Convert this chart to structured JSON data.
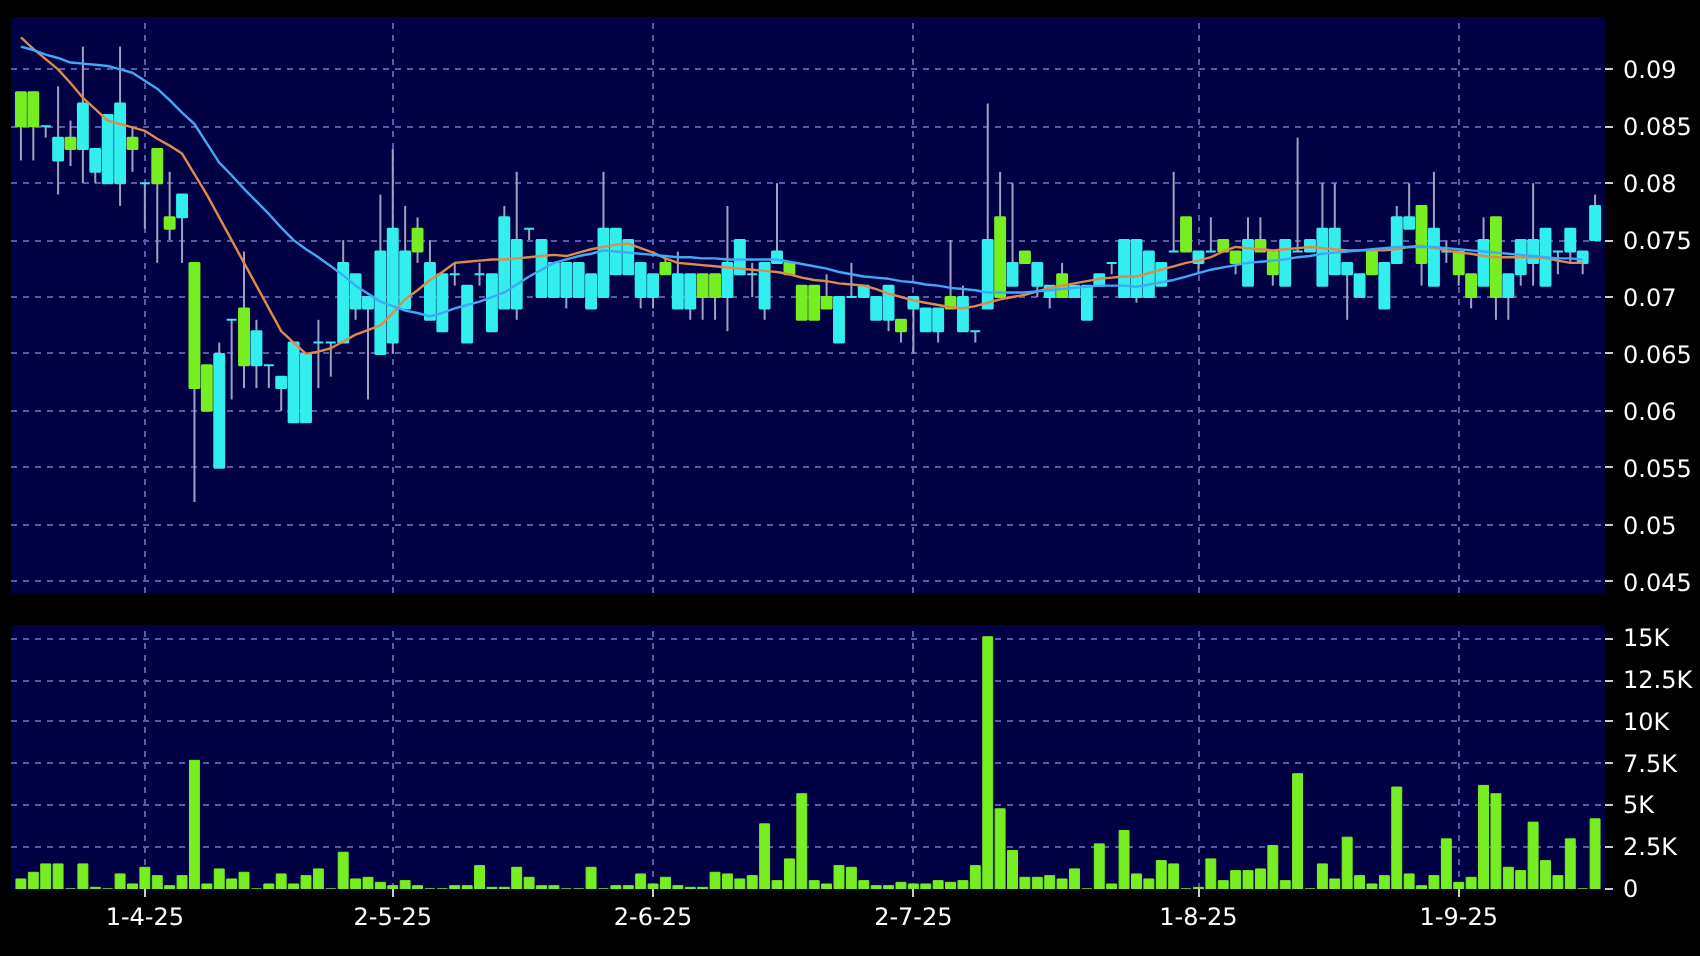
{
  "chart_data": [
    {
      "type": "candlestick",
      "categories": [
        null,
        null,
        null,
        null,
        null,
        null,
        null,
        null,
        null,
        null,
        null,
        null,
        null,
        null,
        null,
        null,
        null,
        null,
        null,
        null,
        null,
        null,
        null,
        null,
        null,
        null,
        null,
        null,
        null,
        null,
        null,
        null,
        null,
        null,
        null,
        null,
        null,
        null,
        null,
        null,
        null,
        null,
        null,
        null,
        null,
        null,
        null,
        null,
        null,
        null,
        null,
        null,
        null,
        null,
        null,
        null,
        null,
        null,
        null,
        null,
        null,
        null,
        null,
        null,
        null,
        null,
        null,
        null,
        null,
        null,
        null,
        null,
        null,
        null,
        null,
        null,
        null,
        null,
        null,
        null,
        null,
        null,
        null,
        null,
        null,
        null,
        null,
        null,
        null,
        null,
        null,
        null,
        null,
        null,
        null,
        null,
        null,
        null,
        null,
        null,
        null,
        null,
        null,
        null,
        null,
        null,
        null,
        null,
        null,
        null,
        null,
        null,
        null,
        null,
        null,
        null,
        null,
        null,
        null,
        null,
        null,
        null,
        null,
        null,
        null,
        null,
        null,
        null
      ],
      "ohlc": [
        [
          0.088,
          0.088,
          0.082,
          0.085
        ],
        [
          0.088,
          0.088,
          0.082,
          0.085
        ],
        [
          0.085,
          0.085,
          0.084,
          0.085
        ],
        [
          0.082,
          0.0885,
          0.079,
          0.084
        ],
        [
          0.084,
          0.0855,
          0.0815,
          0.083
        ],
        [
          0.083,
          0.092,
          0.08,
          0.087
        ],
        [
          0.081,
          0.083,
          0.08,
          0.083
        ],
        [
          0.08,
          0.086,
          0.08,
          0.086
        ],
        [
          0.08,
          0.092,
          0.078,
          0.087
        ],
        [
          0.084,
          0.085,
          0.081,
          0.083
        ],
        [
          0.08,
          0.08,
          0.076,
          0.08
        ],
        [
          0.083,
          0.083,
          0.073,
          0.08
        ],
        [
          0.077,
          0.081,
          0.075,
          0.076
        ],
        [
          0.077,
          0.079,
          0.073,
          0.079
        ],
        [
          0.073,
          0.073,
          0.052,
          0.062
        ],
        [
          0.064,
          0.064,
          0.06,
          0.06
        ],
        [
          0.055,
          0.066,
          0.055,
          0.065
        ],
        [
          0.068,
          0.068,
          0.061,
          0.068
        ],
        [
          0.069,
          0.074,
          0.062,
          0.064
        ],
        [
          0.064,
          0.068,
          0.062,
          0.067
        ],
        [
          0.064,
          0.064,
          0.062,
          0.064
        ],
        [
          0.062,
          0.063,
          0.06,
          0.063
        ],
        [
          0.059,
          0.066,
          0.059,
          0.066
        ],
        [
          0.059,
          0.065,
          0.059,
          0.065
        ],
        [
          0.066,
          0.068,
          0.062,
          0.066
        ],
        [
          0.066,
          0.066,
          0.063,
          0.066
        ],
        [
          0.066,
          0.075,
          0.066,
          0.073
        ],
        [
          0.069,
          0.072,
          0.068,
          0.072
        ],
        [
          0.069,
          0.07,
          0.061,
          0.07
        ],
        [
          0.065,
          0.079,
          0.065,
          0.074
        ],
        [
          0.066,
          0.083,
          0.065,
          0.076
        ],
        [
          0.069,
          0.078,
          0.069,
          0.074
        ],
        [
          0.076,
          0.077,
          0.073,
          0.074
        ],
        [
          0.068,
          0.075,
          0.068,
          0.073
        ],
        [
          0.067,
          0.072,
          0.067,
          0.072
        ],
        [
          0.072,
          0.073,
          0.071,
          0.072
        ],
        [
          0.066,
          0.071,
          0.066,
          0.071
        ],
        [
          0.072,
          0.073,
          0.071,
          0.072
        ],
        [
          0.067,
          0.072,
          0.067,
          0.072
        ],
        [
          0.069,
          0.078,
          0.069,
          0.077
        ],
        [
          0.069,
          0.081,
          0.068,
          0.075
        ],
        [
          0.076,
          0.076,
          0.075,
          0.076
        ],
        [
          0.07,
          0.075,
          0.07,
          0.075
        ],
        [
          0.07,
          0.073,
          0.07,
          0.073
        ],
        [
          0.07,
          0.073,
          0.069,
          0.073
        ],
        [
          0.07,
          0.073,
          0.07,
          0.073
        ],
        [
          0.069,
          0.072,
          0.069,
          0.072
        ],
        [
          0.07,
          0.081,
          0.07,
          0.076
        ],
        [
          0.072,
          0.076,
          0.072,
          0.076
        ],
        [
          0.072,
          0.075,
          0.072,
          0.075
        ],
        [
          0.07,
          0.073,
          0.069,
          0.073
        ],
        [
          0.07,
          0.072,
          0.069,
          0.072
        ],
        [
          0.073,
          0.0735,
          0.072,
          0.072
        ],
        [
          0.069,
          0.074,
          0.069,
          0.072
        ],
        [
          0.069,
          0.072,
          0.068,
          0.072
        ],
        [
          0.072,
          0.072,
          0.068,
          0.07
        ],
        [
          0.072,
          0.072,
          0.068,
          0.07
        ],
        [
          0.07,
          0.078,
          0.067,
          0.073
        ],
        [
          0.072,
          0.075,
          0.072,
          0.075
        ],
        [
          0.072,
          0.073,
          0.07,
          0.072
        ],
        [
          0.069,
          0.073,
          0.068,
          0.073
        ],
        [
          0.073,
          0.08,
          0.073,
          0.074
        ],
        [
          0.073,
          0.073,
          0.072,
          0.072
        ],
        [
          0.071,
          0.071,
          0.068,
          0.068
        ],
        [
          0.071,
          0.071,
          0.068,
          0.068
        ],
        [
          0.07,
          0.072,
          0.069,
          0.069
        ],
        [
          0.066,
          0.07,
          0.066,
          0.07
        ],
        [
          0.07,
          0.073,
          0.07,
          0.07
        ],
        [
          0.07,
          0.071,
          0.07,
          0.071
        ],
        [
          0.068,
          0.07,
          0.068,
          0.07
        ],
        [
          0.068,
          0.071,
          0.067,
          0.071
        ],
        [
          0.068,
          0.068,
          0.066,
          0.067
        ],
        [
          0.069,
          0.07,
          0.065,
          0.07
        ],
        [
          0.067,
          0.069,
          0.067,
          0.069
        ],
        [
          0.067,
          0.069,
          0.066,
          0.069
        ],
        [
          0.07,
          0.075,
          0.069,
          0.069
        ],
        [
          0.067,
          0.071,
          0.067,
          0.07
        ],
        [
          0.067,
          0.067,
          0.066,
          0.067
        ],
        [
          0.069,
          0.087,
          0.069,
          0.075
        ],
        [
          0.077,
          0.081,
          0.07,
          0.07
        ],
        [
          0.071,
          0.08,
          0.071,
          0.073
        ],
        [
          0.074,
          0.074,
          0.073,
          0.073
        ],
        [
          0.071,
          0.073,
          0.07,
          0.073
        ],
        [
          0.07,
          0.071,
          0.069,
          0.071
        ],
        [
          0.072,
          0.073,
          0.07,
          0.07
        ],
        [
          0.07,
          0.071,
          0.07,
          0.071
        ],
        [
          0.068,
          0.071,
          0.068,
          0.071
        ],
        [
          0.071,
          0.072,
          0.071,
          0.072
        ],
        [
          0.073,
          0.073,
          0.072,
          0.073
        ],
        [
          0.07,
          0.075,
          0.07,
          0.075
        ],
        [
          0.07,
          0.075,
          0.0695,
          0.075
        ],
        [
          0.07,
          0.074,
          0.07,
          0.074
        ],
        [
          0.071,
          0.073,
          0.071,
          0.073
        ],
        [
          0.074,
          0.081,
          0.074,
          0.074
        ],
        [
          0.077,
          0.077,
          0.074,
          0.074
        ],
        [
          0.073,
          0.074,
          0.072,
          0.074
        ],
        [
          0.074,
          0.077,
          0.074,
          0.074
        ],
        [
          0.075,
          0.075,
          0.074,
          0.074
        ],
        [
          0.074,
          0.074,
          0.072,
          0.073
        ],
        [
          0.071,
          0.077,
          0.071,
          0.075
        ],
        [
          0.075,
          0.077,
          0.074,
          0.074
        ],
        [
          0.074,
          0.074,
          0.071,
          0.072
        ],
        [
          0.071,
          0.075,
          0.071,
          0.075
        ],
        [
          0.074,
          0.084,
          0.074,
          0.074
        ],
        [
          0.074,
          0.075,
          0.074,
          0.075
        ],
        [
          0.071,
          0.08,
          0.071,
          0.076
        ],
        [
          0.072,
          0.08,
          0.072,
          0.076
        ],
        [
          0.072,
          0.073,
          0.068,
          0.073
        ],
        [
          0.07,
          0.072,
          0.07,
          0.072
        ],
        [
          0.074,
          0.074,
          0.072,
          0.072
        ],
        [
          0.069,
          0.073,
          0.069,
          0.073
        ],
        [
          0.073,
          0.078,
          0.073,
          0.077
        ],
        [
          0.076,
          0.08,
          0.076,
          0.077
        ],
        [
          0.078,
          0.078,
          0.071,
          0.073
        ],
        [
          0.071,
          0.081,
          0.071,
          0.076
        ],
        [
          0.074,
          0.075,
          0.073,
          0.074
        ],
        [
          0.074,
          0.074,
          0.071,
          0.072
        ],
        [
          0.072,
          0.072,
          0.069,
          0.07
        ],
        [
          0.071,
          0.077,
          0.071,
          0.075
        ],
        [
          0.077,
          0.077,
          0.068,
          0.07
        ],
        [
          0.07,
          0.072,
          0.068,
          0.072
        ],
        [
          0.072,
          0.075,
          0.071,
          0.075
        ],
        [
          0.073,
          0.08,
          0.071,
          0.075
        ],
        [
          0.071,
          0.076,
          0.071,
          0.076
        ],
        [
          0.074,
          0.074,
          0.072,
          0.074
        ],
        [
          0.074,
          0.076,
          0.073,
          0.076
        ],
        [
          0.073,
          0.074,
          0.072,
          0.074
        ],
        [
          0.075,
          0.079,
          0.075,
          0.078
        ]
      ],
      "colors": [
        "#77ee22",
        "#77ee22",
        "#33eeee",
        "#33eeee",
        "#77ee22",
        "#33eeee",
        "#33eeee",
        "#33eeee",
        "#33eeee",
        "#77ee22",
        "#33eeee",
        "#77ee22",
        "#77ee22",
        "#33eeee",
        "#77ee22",
        "#77ee22",
        "#33eeee",
        "#33eeee",
        "#77ee22",
        "#33eeee",
        "#33eeee",
        "#33eeee",
        "#33eeee",
        "#33eeee",
        "#33eeee",
        "#33eeee",
        "#33eeee",
        "#33eeee",
        "#33eeee",
        "#33eeee",
        "#33eeee",
        "#33eeee",
        "#77ee22",
        "#33eeee",
        "#33eeee",
        "#33eeee",
        "#33eeee",
        "#33eeee",
        "#33eeee",
        "#33eeee",
        "#33eeee",
        "#33eeee",
        "#33eeee",
        "#33eeee",
        "#33eeee",
        "#33eeee",
        "#33eeee",
        "#33eeee",
        "#33eeee",
        "#33eeee",
        "#33eeee",
        "#33eeee",
        "#77ee22",
        "#33eeee",
        "#33eeee",
        "#77ee22",
        "#77ee22",
        "#33eeee",
        "#33eeee",
        "#33eeee",
        "#33eeee",
        "#33eeee",
        "#77ee22",
        "#77ee22",
        "#77ee22",
        "#77ee22",
        "#33eeee",
        "#33eeee",
        "#33eeee",
        "#33eeee",
        "#33eeee",
        "#77ee22",
        "#33eeee",
        "#33eeee",
        "#33eeee",
        "#77ee22",
        "#33eeee",
        "#33eeee",
        "#33eeee",
        "#77ee22",
        "#33eeee",
        "#77ee22",
        "#33eeee",
        "#33eeee",
        "#77ee22",
        "#33eeee",
        "#33eeee",
        "#33eeee",
        "#33eeee",
        "#33eeee",
        "#33eeee",
        "#33eeee",
        "#33eeee",
        "#33eeee",
        "#77ee22",
        "#33eeee",
        "#33eeee",
        "#77ee22",
        "#77ee22",
        "#33eeee",
        "#77ee22",
        "#77ee22",
        "#33eeee",
        "#33eeee",
        "#33eeee",
        "#33eeee",
        "#33eeee",
        "#33eeee",
        "#33eeee",
        "#77ee22",
        "#33eeee",
        "#33eeee",
        "#33eeee",
        "#77ee22",
        "#33eeee",
        "#33eeee",
        "#77ee22",
        "#77ee22",
        "#33eeee",
        "#77ee22",
        "#33eeee",
        "#33eeee",
        "#33eeee",
        "#33eeee",
        "#33eeee",
        "#33eeee",
        "#33eeee",
        "#33eeee"
      ],
      "series": [
        {
          "type": "line",
          "color": "#e08a4a",
          "values": [
            0.0928,
            0.0918,
            0.0909,
            0.09,
            0.0888,
            0.0875,
            0.0865,
            0.0855,
            0.0852,
            0.0849,
            0.0846,
            0.0839,
            0.0833,
            0.0826,
            0.0808,
            0.079,
            0.077,
            0.075,
            0.073,
            0.071,
            0.069,
            0.067,
            0.066,
            0.065,
            0.0652,
            0.0655,
            0.0661,
            0.0667,
            0.0671,
            0.0675,
            0.0686,
            0.0698,
            0.0706,
            0.0715,
            0.0722,
            0.073,
            0.0731,
            0.0732,
            0.0733,
            0.0733,
            0.0734,
            0.0735,
            0.0736,
            0.0737,
            0.0736,
            0.0739,
            0.0742,
            0.0744,
            0.0746,
            0.0747,
            0.0743,
            0.0739,
            0.0734,
            0.073,
            0.0729,
            0.0728,
            0.0727,
            0.0726,
            0.0725,
            0.0724,
            0.0723,
            0.0722,
            0.072,
            0.0717,
            0.0715,
            0.0714,
            0.0712,
            0.0711,
            0.071,
            0.0707,
            0.0703,
            0.07,
            0.0697,
            0.0695,
            0.0693,
            0.0691,
            0.069,
            0.0692,
            0.0695,
            0.0698,
            0.07,
            0.0702,
            0.0705,
            0.0708,
            0.071,
            0.0712,
            0.0714,
            0.0716,
            0.0717,
            0.0718,
            0.0718,
            0.0721,
            0.0724,
            0.0727,
            0.073,
            0.0732,
            0.0735,
            0.074,
            0.0744,
            0.0743,
            0.0742,
            0.0741,
            0.0742,
            0.0743,
            0.0744,
            0.0743,
            0.0742,
            0.0741,
            0.0741,
            0.0741,
            0.0741,
            0.0742,
            0.0744,
            0.0745,
            0.0743,
            0.0741,
            0.0739,
            0.0738,
            0.0736,
            0.0735,
            0.0735,
            0.0735,
            0.0735,
            0.0734,
            0.0732,
            0.073,
            0.073,
            null
          ]
        },
        {
          "type": "line",
          "color": "#3fa9f5",
          "values": [
            0.092,
            0.0917,
            0.0913,
            0.091,
            0.0906,
            0.0905,
            0.0904,
            0.0903,
            0.09,
            0.0897,
            0.089,
            0.0883,
            0.0873,
            0.0862,
            0.0852,
            0.0835,
            0.0818,
            0.0807,
            0.0795,
            0.0784,
            0.0773,
            0.0761,
            0.075,
            0.0742,
            0.0735,
            0.0727,
            0.0719,
            0.071,
            0.0703,
            0.0696,
            0.0692,
            0.0688,
            0.0686,
            0.0683,
            0.0686,
            0.069,
            0.0693,
            0.0696,
            0.07,
            0.0704,
            0.0711,
            0.0718,
            0.0724,
            0.073,
            0.0733,
            0.0736,
            0.0738,
            0.0741,
            0.074,
            0.0739,
            0.0738,
            0.0737,
            0.0736,
            0.0735,
            0.0735,
            0.0734,
            0.0734,
            0.0733,
            0.0733,
            0.0733,
            0.0733,
            0.0733,
            0.0731,
            0.0729,
            0.0727,
            0.0725,
            0.0722,
            0.072,
            0.0718,
            0.0717,
            0.0716,
            0.0714,
            0.0713,
            0.0711,
            0.071,
            0.0708,
            0.0707,
            0.0706,
            0.0704,
            0.0704,
            0.0704,
            0.0704,
            0.0705,
            0.0706,
            0.0707,
            0.0708,
            0.0709,
            0.071,
            0.071,
            0.071,
            0.0709,
            0.0711,
            0.0713,
            0.0715,
            0.0718,
            0.0721,
            0.0724,
            0.0726,
            0.0728,
            0.073,
            0.0731,
            0.0732,
            0.0733,
            0.0735,
            0.0736,
            0.0738,
            0.0739,
            0.074,
            0.0741,
            0.0742,
            0.0743,
            0.0744,
            0.0744,
            0.0744,
            0.0744,
            0.0743,
            0.0742,
            0.0741,
            0.074,
            0.0739,
            0.0738,
            0.0737,
            0.0736,
            0.0735,
            0.0734,
            0.0734,
            0.0733,
            null
          ]
        }
      ],
      "ylim": [
        0.044,
        0.0946
      ],
      "yticks": [
        0.045,
        0.05,
        0.055,
        0.06,
        0.065,
        0.07,
        0.075,
        0.08,
        0.085,
        0.09
      ],
      "grid": true,
      "tick_labels": "y"
    },
    {
      "type": "bar",
      "categories": [
        null,
        null,
        null,
        null,
        null,
        null,
        null,
        null,
        null,
        null,
        "1-4-25",
        null,
        null,
        null,
        null,
        null,
        null,
        null,
        null,
        null,
        null,
        null,
        null,
        null,
        null,
        null,
        null,
        null,
        null,
        null,
        "2-5-25",
        null,
        null,
        null,
        null,
        null,
        null,
        null,
        null,
        null,
        null,
        null,
        null,
        null,
        null,
        null,
        null,
        null,
        null,
        null,
        null,
        "2-6-25",
        null,
        null,
        null,
        null,
        null,
        null,
        null,
        null,
        null,
        null,
        null,
        null,
        null,
        null,
        null,
        null,
        null,
        null,
        null,
        null,
        "2-7-25",
        null,
        null,
        null,
        null,
        null,
        null,
        null,
        null,
        null,
        null,
        null,
        null,
        null,
        null,
        null,
        null,
        null,
        null,
        null,
        null,
        null,
        null,
        "1-8-25",
        null,
        null,
        null,
        null,
        null,
        null,
        null,
        null,
        null,
        null,
        null,
        null,
        null,
        null,
        null,
        null,
        null,
        null,
        null,
        null,
        "1-9-25",
        null,
        null,
        null,
        null,
        null,
        null,
        null,
        null,
        null,
        null,
        null
      ],
      "values": [
        600,
        1000,
        1500,
        1500,
        0,
        1500,
        100,
        0,
        900,
        300,
        1300,
        800,
        200,
        800,
        7700,
        300,
        1200,
        600,
        1000,
        0,
        300,
        900,
        300,
        800,
        1200,
        0,
        2200,
        600,
        700,
        400,
        200,
        500,
        200,
        0,
        0,
        200,
        200,
        1400,
        100,
        100,
        1300,
        700,
        200,
        200,
        0,
        0,
        1300,
        0,
        200,
        200,
        900,
        300,
        700,
        200,
        100,
        100,
        1000,
        900,
        600,
        800,
        3900,
        500,
        1800,
        5700,
        500,
        300,
        1400,
        1300,
        500,
        200,
        200,
        400,
        300,
        300,
        500,
        400,
        500,
        1400,
        15100,
        4800,
        2300,
        700,
        700,
        800,
        600,
        1200,
        0,
        2700,
        300,
        3500,
        900,
        600,
        1700,
        1500,
        0,
        100,
        1800,
        500,
        1100,
        1100,
        1200,
        2600,
        500,
        6900,
        0,
        1500,
        600,
        3100,
        800,
        300,
        800,
        6100,
        900,
        200,
        800,
        3000,
        400,
        700,
        6200,
        5700,
        1300,
        1100,
        4000,
        1700,
        800,
        3000,
        0,
        4200
      ],
      "color": "#77ee22",
      "ylim": [
        0,
        15800
      ],
      "yticks": [
        0,
        {
          "value": 2500,
          "label": "2.5K"
        },
        {
          "value": 5000,
          "label": "5K"
        },
        {
          "value": 7500,
          "label": "7.5K"
        },
        {
          "value": 10000,
          "label": "10K"
        },
        {
          "value": 12500,
          "label": "12.5K"
        },
        {
          "value": 15000,
          "label": "15K"
        }
      ],
      "grid": true
    }
  ]
}
